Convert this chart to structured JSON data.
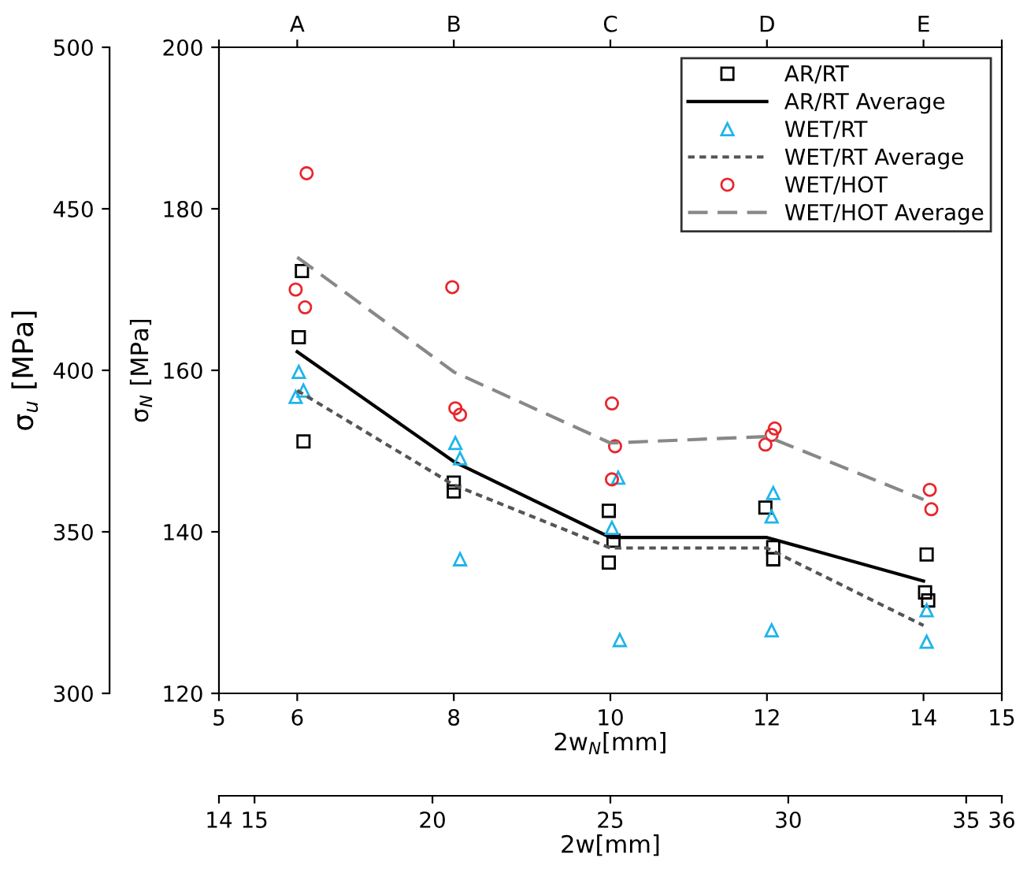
{
  "chart_data": {
    "type": "scatter",
    "xlabel": "2w$_{N}$[mm]",
    "ylabel": "σ$_{N}$ [MPa]",
    "y2label": "σ$_{u}$ [MPa]",
    "x2label": "2w[mm]",
    "xlim": [
      5,
      15
    ],
    "xticks": [
      5,
      6,
      8,
      10,
      12,
      14,
      15
    ],
    "ylim": [
      120,
      200
    ],
    "yticks": [
      120,
      140,
      160,
      180,
      200
    ],
    "y2lim": [
      300,
      500
    ],
    "y2ticks": [
      300,
      350,
      400,
      450,
      500
    ],
    "x2lim": [
      14,
      36
    ],
    "x2ticks": [
      14,
      15,
      20,
      25,
      30,
      35,
      36
    ],
    "annotations": [
      "A",
      "B",
      "C",
      "D",
      "E"
    ],
    "grid": false,
    "legend": "top right",
    "series": [
      {
        "name": "AR/RT",
        "marker": "square",
        "color": "#000000",
        "x": [
          6.06,
          6.02,
          6.08,
          8.0,
          8.0,
          9.98,
          10.04,
          9.98,
          11.98,
          12.08,
          12.08,
          14.04,
          14.02,
          14.06
        ],
        "values": [
          172.3,
          164.1,
          151.2,
          146.1,
          145.0,
          142.6,
          138.9,
          136.2,
          143.0,
          138.1,
          136.6,
          137.2,
          132.5,
          131.5
        ]
      },
      {
        "name": "AR/RT Average",
        "type": "line",
        "marker": "none",
        "line_style": "solid",
        "color": "#000000",
        "x": [
          6,
          8,
          10,
          12,
          14
        ],
        "values": [
          162.3,
          148.7,
          139.3,
          139.3,
          133.9
        ]
      },
      {
        "name": "WET/RT",
        "marker": "triangle",
        "color": "#1fb4ea",
        "x": [
          6.02,
          5.98,
          6.08,
          8.02,
          8.08,
          8.08,
          10.1,
          10.02,
          10.12,
          12.08,
          12.06,
          12.06,
          14.04,
          14.04
        ],
        "values": [
          159.8,
          156.7,
          157.5,
          151.0,
          149.1,
          136.6,
          146.7,
          140.5,
          126.6,
          144.8,
          141.9,
          127.8,
          130.3,
          126.4
        ]
      },
      {
        "name": "WET/RT Average",
        "type": "line",
        "marker": "none",
        "line_style": "dotted",
        "color": "#555555",
        "x": [
          6,
          8,
          10,
          12,
          14
        ],
        "values": [
          157.5,
          145.8,
          138.0,
          138.0,
          128.4
        ]
      },
      {
        "name": "WET/HOT",
        "marker": "circle",
        "color": "#e8262d",
        "x": [
          6.12,
          5.98,
          6.1,
          7.98,
          8.02,
          8.08,
          10.02,
          10.06,
          10.02,
          12.1,
          12.06,
          11.98,
          14.08,
          14.1
        ],
        "values": [
          184.4,
          170.0,
          167.8,
          170.3,
          155.3,
          154.5,
          155.9,
          150.6,
          146.5,
          152.8,
          152.0,
          150.8,
          145.2,
          142.8
        ]
      },
      {
        "name": "WET/HOT Average",
        "type": "line",
        "marker": "none",
        "line_style": "dashed",
        "color": "#888888",
        "x": [
          6,
          8,
          10,
          12,
          14
        ],
        "values": [
          174.0,
          159.8,
          151.0,
          151.8,
          144.0
        ]
      }
    ]
  }
}
